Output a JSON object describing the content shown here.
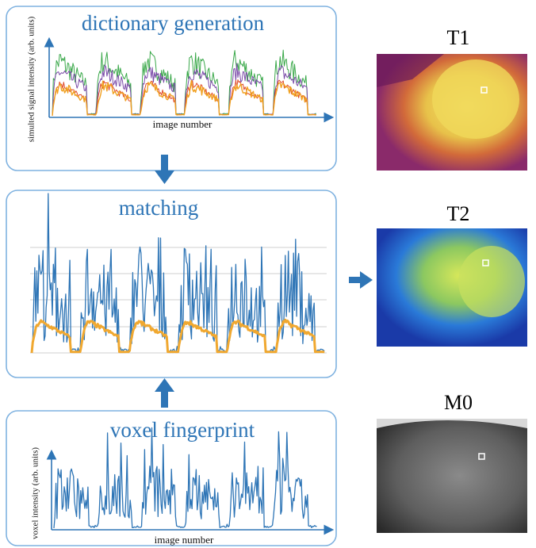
{
  "panels": [
    {
      "title": "dictionary generation",
      "y_label": "simulted signal intensity (arb. units)",
      "x_label": "image number"
    },
    {
      "title": "matching"
    },
    {
      "title": "voxel fingerprint",
      "y_label": "voxel intensity (arb. units)",
      "x_label": "image number"
    }
  ],
  "maps": [
    {
      "label": "T1"
    },
    {
      "label": "T2"
    },
    {
      "label": "M0"
    }
  ]
}
